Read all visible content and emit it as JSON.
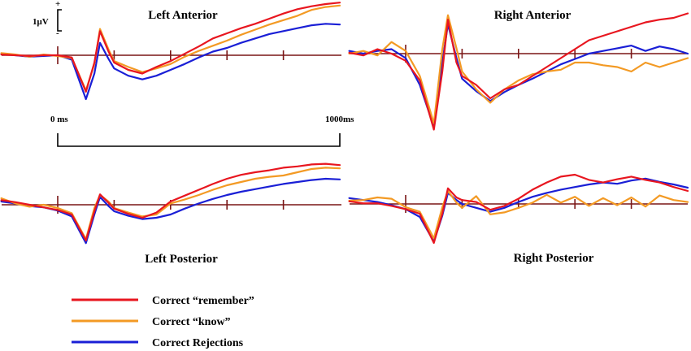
{
  "chart_data": {
    "type": "line",
    "scale_bar": {
      "value_label": "1μV",
      "plus": "+",
      "minus": "-"
    },
    "time_axis": {
      "start_label": "0 ms",
      "end_label": "1000ms",
      "ticks_ms": [
        0,
        200,
        400,
        600,
        800
      ]
    },
    "series_names": [
      "Correct “remember”",
      "Correct “know”",
      "Correct Rejections"
    ],
    "colors": [
      "#e8161f",
      "#f39a24",
      "#1a1fd6",
      "#7a1616"
    ],
    "panels": [
      {
        "title": "Left Anterior",
        "x_ms": [
          -200,
          -150,
          -100,
          -50,
          0,
          50,
          100,
          130,
          150,
          180,
          200,
          250,
          300,
          350,
          400,
          450,
          500,
          550,
          600,
          650,
          700,
          750,
          800,
          850,
          900,
          950,
          1000
        ],
        "series": [
          {
            "name": "Correct “remember”",
            "values": [
              0.1,
              0.0,
              -0.1,
              0.0,
              0.0,
              -0.3,
              -5.0,
              -1.0,
              3.3,
              0.5,
              -1.0,
              -2.0,
              -2.5,
              -1.6,
              -0.8,
              0.2,
              1.2,
              2.3,
              3.0,
              3.7,
              4.3,
              5.0,
              5.7,
              6.3,
              6.7,
              7.0,
              7.2
            ]
          },
          {
            "name": "Correct “know”",
            "values": [
              0.3,
              0.1,
              -0.2,
              0.1,
              -0.1,
              -0.4,
              -4.8,
              -1.2,
              3.6,
              0.8,
              -0.8,
              -1.6,
              -2.3,
              -1.8,
              -1.2,
              -0.2,
              0.6,
              1.3,
              2.0,
              2.8,
              3.5,
              4.2,
              4.8,
              5.4,
              6.2,
              6.6,
              6.8
            ]
          },
          {
            "name": "Correct Rejections",
            "values": [
              0.2,
              0.0,
              -0.2,
              -0.1,
              0.0,
              -0.6,
              -6.0,
              -2.5,
              1.7,
              -0.5,
              -1.8,
              -2.8,
              -3.3,
              -2.8,
              -2.0,
              -1.2,
              -0.3,
              0.5,
              1.0,
              1.7,
              2.3,
              2.9,
              3.3,
              3.7,
              4.1,
              4.3,
              4.2
            ]
          }
        ]
      },
      {
        "title": "Right Anterior",
        "x_ms": [
          -200,
          -150,
          -100,
          -50,
          0,
          50,
          100,
          130,
          150,
          180,
          200,
          250,
          300,
          350,
          400,
          450,
          500,
          550,
          600,
          650,
          700,
          750,
          800,
          850,
          900,
          950,
          1000
        ],
        "series": [
          {
            "name": "Correct “remember”",
            "values": [
              0.1,
              -0.2,
              0.5,
              0.0,
              -0.8,
              -3.0,
              -8.5,
              -2.0,
              3.8,
              -1.0,
              -2.5,
              -3.5,
              -5.0,
              -4.0,
              -3.5,
              -2.5,
              -1.5,
              -0.5,
              0.5,
              1.5,
              2.0,
              2.5,
              3.0,
              3.5,
              3.8,
              4.0,
              4.5
            ]
          },
          {
            "name": "Correct “know”",
            "values": [
              0.0,
              0.3,
              -0.2,
              1.3,
              0.3,
              -2.5,
              -7.8,
              0.5,
              4.3,
              0.6,
              -2.0,
              -4.0,
              -5.5,
              -4.0,
              -3.0,
              -2.3,
              -2.0,
              -1.8,
              -1.0,
              -1.0,
              -1.3,
              -1.5,
              -2.0,
              -1.0,
              -1.5,
              -1.0,
              -0.5
            ]
          },
          {
            "name": "Correct Rejections",
            "values": [
              0.3,
              0.0,
              0.3,
              0.5,
              -0.5,
              -3.5,
              -8.2,
              -1.0,
              3.3,
              -0.5,
              -2.8,
              -4.2,
              -5.3,
              -4.3,
              -3.5,
              -2.8,
              -2.0,
              -1.2,
              -0.6,
              0.0,
              0.3,
              0.6,
              0.9,
              0.3,
              0.8,
              0.5,
              0.0
            ]
          }
        ]
      },
      {
        "title": "Left Posterior",
        "x_ms": [
          -200,
          -150,
          -100,
          -50,
          0,
          50,
          100,
          130,
          150,
          180,
          200,
          250,
          300,
          350,
          400,
          450,
          500,
          550,
          600,
          650,
          700,
          750,
          800,
          850,
          900,
          950,
          1000
        ],
        "series": [
          {
            "name": "Correct “remember”",
            "values": [
              0.7,
              0.4,
              0.0,
              -0.4,
              -0.8,
              -1.5,
              -5.5,
              -1.0,
              1.6,
              0.3,
              -0.6,
              -1.4,
              -2.0,
              -1.2,
              0.5,
              1.4,
              2.3,
              3.2,
              4.0,
              4.6,
              5.0,
              5.3,
              5.7,
              5.9,
              6.2,
              6.3,
              6.1
            ]
          },
          {
            "name": "Correct “know”",
            "values": [
              1.0,
              0.2,
              -0.3,
              0.0,
              -0.5,
              -1.3,
              -5.3,
              -0.5,
              1.5,
              0.5,
              -0.5,
              -1.2,
              -1.8,
              -1.5,
              0.2,
              0.8,
              1.5,
              2.3,
              3.0,
              3.5,
              4.0,
              4.3,
              4.5,
              5.0,
              5.5,
              5.7,
              5.6
            ]
          },
          {
            "name": "Correct Rejections",
            "values": [
              0.5,
              0.2,
              -0.2,
              -0.4,
              -0.9,
              -1.8,
              -5.9,
              -1.5,
              1.2,
              -0.2,
              -1.0,
              -1.7,
              -2.2,
              -2.0,
              -1.5,
              -0.6,
              0.2,
              0.9,
              1.5,
              2.0,
              2.4,
              2.8,
              3.2,
              3.5,
              3.8,
              4.0,
              3.9
            ]
          }
        ]
      },
      {
        "title": "Right Posterior",
        "x_ms": [
          -200,
          -150,
          -100,
          -50,
          0,
          50,
          100,
          130,
          150,
          180,
          200,
          250,
          300,
          350,
          400,
          450,
          500,
          550,
          600,
          650,
          700,
          750,
          800,
          850,
          900,
          950,
          1000
        ],
        "series": [
          {
            "name": "Correct “remember”",
            "values": [
              0.4,
              0.1,
              0.1,
              -0.3,
              -0.8,
              -1.5,
              -6.0,
              -1.5,
              2.4,
              1.0,
              0.6,
              0.3,
              -0.9,
              -0.3,
              0.8,
              2.2,
              3.3,
              4.2,
              4.5,
              3.7,
              3.3,
              3.8,
              4.2,
              3.7,
              3.3,
              2.6,
              2.0
            ]
          },
          {
            "name": "Correct “know”",
            "values": [
              0.5,
              0.6,
              1.0,
              0.8,
              -0.5,
              -1.2,
              -5.3,
              -0.5,
              2.0,
              0.2,
              -0.6,
              1.2,
              -1.6,
              -1.3,
              -0.6,
              0.2,
              1.4,
              0.2,
              1.1,
              -0.3,
              0.9,
              -0.2,
              1.0,
              -0.4,
              1.3,
              0.6,
              0.3
            ]
          },
          {
            "name": "Correct Rejections",
            "values": [
              0.9,
              0.6,
              0.3,
              -0.2,
              -0.8,
              -2.0,
              -5.8,
              -1.8,
              1.7,
              0.6,
              0.0,
              -0.6,
              -1.2,
              -0.6,
              0.3,
              1.1,
              1.7,
              2.2,
              2.6,
              3.0,
              3.3,
              3.1,
              3.6,
              3.9,
              3.4,
              3.0,
              2.5
            ]
          }
        ]
      }
    ]
  },
  "legend": {
    "items": [
      "Correct “remember”",
      "Correct “know”",
      "Correct Rejections"
    ]
  }
}
